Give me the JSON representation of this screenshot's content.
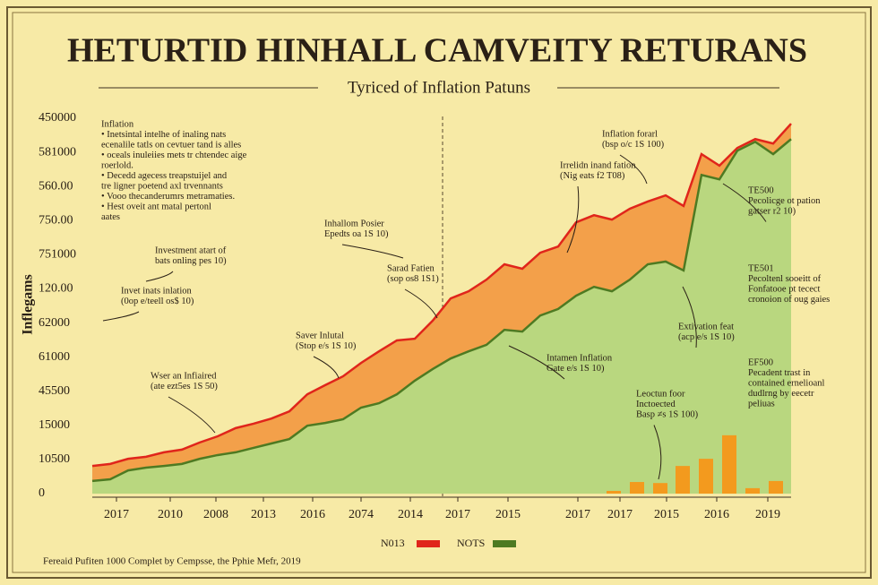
{
  "chart_data": {
    "type": "area",
    "title": "HETURTID HINHALL CAMVEITY RETURANS",
    "subtitle": "Tyriced of Inflation Patuns",
    "y_label": "Inflegams",
    "footer": "Fereaid Pufiten 1000 Complet by Cempsse, the Pphie Mefr, 2019",
    "x": [
      0,
      1,
      2,
      3,
      4,
      5,
      6,
      7,
      8,
      9,
      10,
      11,
      12,
      13,
      14,
      15,
      16,
      17,
      18,
      19,
      20,
      21,
      22,
      23,
      24,
      25,
      26,
      27,
      28,
      29,
      30,
      31,
      32,
      33,
      34,
      35,
      36,
      37,
      38,
      39
    ],
    "xlim": [
      0,
      39
    ],
    "xticks": [
      {
        "value": 1.35,
        "label": "2017"
      },
      {
        "value": 4.35,
        "label": "2010"
      },
      {
        "value": 6.9,
        "label": "2008"
      },
      {
        "value": 9.55,
        "label": "2013"
      },
      {
        "value": 12.3,
        "label": "2016"
      },
      {
        "value": 15,
        "label": "2074"
      },
      {
        "value": 17.75,
        "label": "2014"
      },
      {
        "value": 20.4,
        "label": "2017"
      },
      {
        "value": 23.2,
        "label": "2015"
      },
      {
        "value": 27.1,
        "label": "2017"
      },
      {
        "value": 29.45,
        "label": "2017"
      },
      {
        "value": 32.05,
        "label": "2015"
      },
      {
        "value": 34.85,
        "label": "2016"
      },
      {
        "value": 37.7,
        "label": "2019"
      }
    ],
    "ylim": [
      0,
      11
    ],
    "yticks": [
      0,
      {
        "value": 1,
        "label": "10500"
      },
      {
        "value": 2,
        "label": "15000"
      },
      {
        "value": 3,
        "label": "45500"
      },
      {
        "value": 4,
        "label": "61000"
      },
      {
        "value": 5,
        "label": "62000"
      },
      {
        "value": 6,
        "label": "120.00"
      },
      {
        "value": 7,
        "label": "751000"
      },
      {
        "value": 8,
        "label": "750.00"
      },
      {
        "value": 9,
        "label": "560.00"
      },
      {
        "value": 10,
        "label": "581000"
      },
      {
        "value": 11,
        "label": "450000"
      }
    ],
    "series": [
      {
        "name": "N013",
        "color": "#e0251b",
        "fill": "#f3a04a",
        "values": [
          0.81,
          0.87,
          1.02,
          1.08,
          1.21,
          1.29,
          1.5,
          1.68,
          1.92,
          2.05,
          2.2,
          2.41,
          2.91,
          3.18,
          3.44,
          3.83,
          4.17,
          4.49,
          4.54,
          5.07,
          5.72,
          5.93,
          6.27,
          6.72,
          6.59,
          7.06,
          7.24,
          7.95,
          8.16,
          8.03,
          8.35,
          8.56,
          8.74,
          8.43,
          9.95,
          9.61,
          10.13,
          10.39,
          10.26,
          10.84
        ]
      },
      {
        "name": "NOTS",
        "color": "#4e7a22",
        "fill": "#b9d77f",
        "values": [
          0.37,
          0.42,
          0.68,
          0.76,
          0.81,
          0.87,
          1.02,
          1.13,
          1.21,
          1.34,
          1.47,
          1.6,
          1.99,
          2.07,
          2.18,
          2.52,
          2.65,
          2.91,
          3.31,
          3.65,
          3.96,
          4.17,
          4.36,
          4.8,
          4.75,
          5.22,
          5.41,
          5.8,
          6.06,
          5.93,
          6.27,
          6.72,
          6.8,
          6.54,
          9.34,
          9.21,
          10.05,
          10.31,
          9.95,
          10.39
        ]
      },
      {
        "type": "bar",
        "color": "#f39a1e",
        "x": [
          29.1,
          30.4,
          31.7,
          32.95,
          34.25,
          35.55,
          36.85,
          38.15
        ],
        "values": [
          0.08,
          0.34,
          0.31,
          0.81,
          1.02,
          1.71,
          0.16,
          0.37
        ]
      }
    ],
    "annotations": [
      {
        "lines": [
          "Inflation",
          "• Inetsintal intelhe of inaling nats",
          "  ecenalile tatls on cevtuer tand is alles",
          "• oceals inuleiies mets tr chtendec aige",
          "  roerlold.",
          "• Decedd agecess treapstuijel and",
          "  tre ligner poetend axl trvennants",
          "• Vooo thecanderumrs metramaties.",
          "• Hest oveit ant matal pertonl",
          "  aates"
        ]
      },
      {
        "lines": [
          "Investment atart of",
          "bats onling pes 10)"
        ]
      },
      {
        "lines": [
          "Invet inats inlation",
          "(0op e/teell os$ 10)"
        ]
      },
      {
        "lines": [
          "Wser an Infiaired",
          "(ate ezt5es 1S 50)"
        ]
      },
      {
        "lines": [
          "Saver Inlutal",
          "(Stop e/s 1S 10)"
        ]
      },
      {
        "lines": [
          "Inhallom Posier",
          "Epedts oa 1S 10)"
        ]
      },
      {
        "lines": [
          "Sarad Fatien",
          "(sop os8 1S1)"
        ]
      },
      {
        "lines": [
          "Irrelidn inand fation",
          "(Nig eats f2 T08)"
        ]
      },
      {
        "lines": [
          "Inflation forarl",
          "(bsp o/c 1S 100)"
        ]
      },
      {
        "lines": [
          "TE500",
          "Pecolicge ot pation",
          "gatser r2 10)"
        ]
      },
      {
        "lines": [
          "TE501",
          "Pecoltenl sooeitt of",
          "Fonfatooe pt tecect",
          "cronoion of oug gaies"
        ]
      },
      {
        "lines": [
          "Extivation feat",
          "(acp e/s 1S 10)"
        ]
      },
      {
        "lines": [
          "Intamen Inflation",
          "Gate e/s 1S 10)"
        ]
      },
      {
        "lines": [
          "EF500",
          "Pecadent trast in",
          "contained ernelioanl",
          "dudlrng by eecetr",
          "peliuas"
        ]
      },
      {
        "lines": [
          "Leoctun foor",
          "Inctoected",
          "Basp ≠s 1S 100)"
        ]
      }
    ]
  }
}
